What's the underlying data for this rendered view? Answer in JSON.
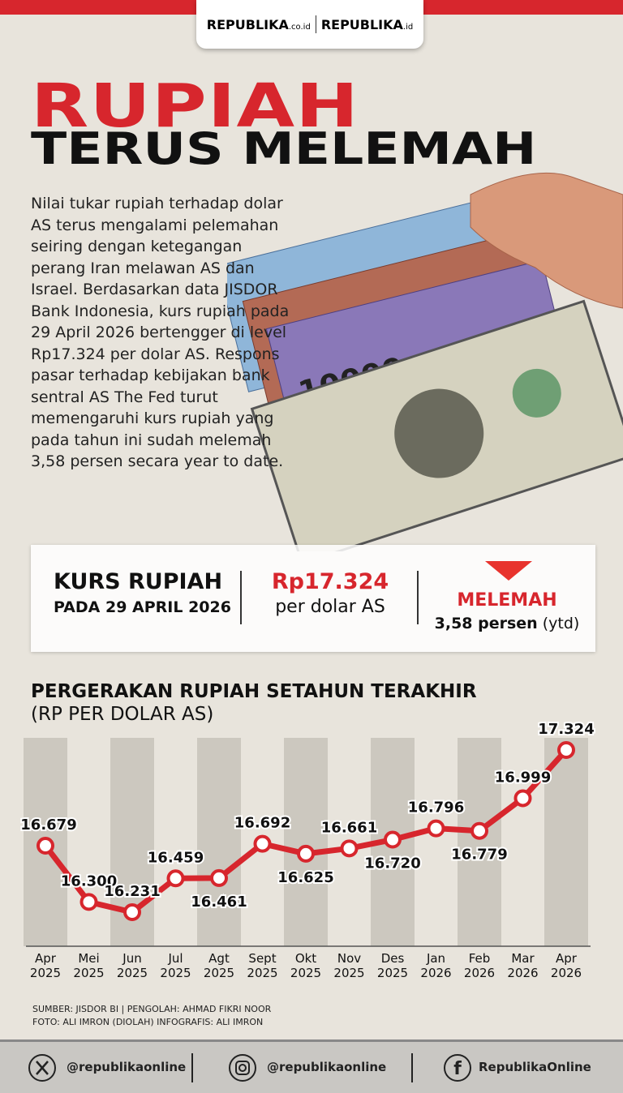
{
  "header": {
    "logo_1": "REPUBLIKA",
    "logo_1_suffix": ".co.id",
    "logo_2": "REPUBLIKA",
    "logo_2_suffix": ".id"
  },
  "title_line_1": "RUPIAH",
  "title_line_2": "TERUS MELEMAH",
  "body": "Nilai tukar rupiah terhadap dolar AS terus mengalami pelemahan seiring dengan ketegangan perang Iran melawan AS dan Israel. Berdasarkan data JISDOR Bank Indonesia, kurs rupiah pada 29 April 2026 bertengger di level Rp17.324 per dolar AS. Respons pasar terhadap kebijakan bank sentral AS The Fed turut memengaruhi kurs rupiah yang pada tahun ini sudah melemah 3,58 persen secara year to date.",
  "stats": {
    "label_1": "KURS RUPIAH",
    "label_2": "PADA 29 APRIL 2026",
    "rate": "Rp17.324",
    "rate_unit": "per dolar AS",
    "trend": "MELEMAH",
    "change": "3,58 persen",
    "change_note": "(ytd)"
  },
  "chart_data": {
    "type": "line",
    "title": "PERGERAKAN RUPIAH SETAHUN TERAKHIR",
    "subtitle": "(RP PER DOLAR AS)",
    "categories": [
      "Apr 2025",
      "Mei 2025",
      "Jun 2025",
      "Jul 2025",
      "Agt 2025",
      "Sept 2025",
      "Okt 2025",
      "Nov 2025",
      "Des 2025",
      "Jan 2026",
      "Feb 2026",
      "Mar 2026",
      "Apr 2026"
    ],
    "values": [
      16679,
      16300,
      16231,
      16459,
      16461,
      16692,
      16625,
      16661,
      16720,
      16796,
      16779,
      16999,
      17324
    ],
    "value_labels": [
      "16.679",
      "16.300",
      "16.231",
      "16.459",
      "16.461",
      "16.692",
      "16.625",
      "16.661",
      "16.720",
      "16.796",
      "16.779",
      "16.999",
      "17.324"
    ],
    "color": "#d7262d"
  },
  "credits": [
    "SUMBER: JISDOR BI | PENGOLAH: AHMAD FIKRI NOOR",
    "FOTO: ALI IMRON (DIOLAH)  INFOGRAFIS: ALI IMRON"
  ],
  "footer": {
    "twitter": "@republikaonline",
    "instagram": "@republikaonline",
    "facebook": "RepublikaOnline"
  }
}
